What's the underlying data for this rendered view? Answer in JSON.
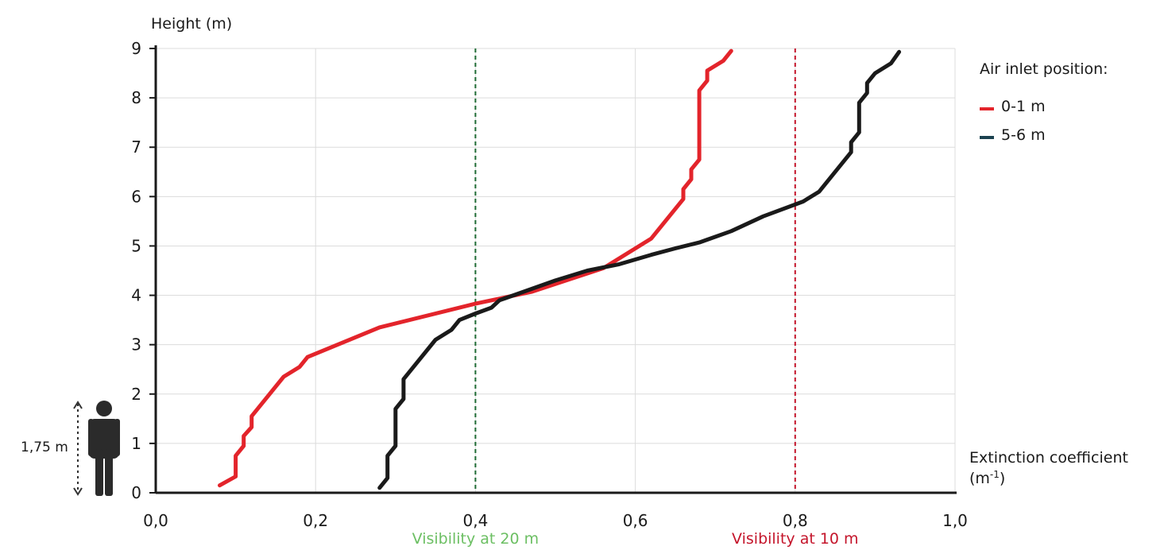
{
  "chart_data": {
    "type": "line",
    "xlabel": "Extinction coefficient",
    "xlabel_unit": "(m-1)",
    "ylabel": "Height (m)",
    "xlim": [
      0,
      1
    ],
    "ylim": [
      0,
      9
    ],
    "x_ticks": [
      "0,0",
      "0,2",
      "0,4",
      "0,6",
      "0,8",
      "1,0"
    ],
    "y_ticks": [
      "0",
      "1",
      "2",
      "3",
      "4",
      "5",
      "6",
      "7",
      "8",
      "9"
    ],
    "grid": true,
    "legend": {
      "title": "Air inlet position:",
      "placement": "right",
      "items": [
        {
          "label": "0-1 m",
          "color": "#e3242b"
        },
        {
          "label": "5-6 m",
          "color": "#1c4250"
        }
      ]
    },
    "series": [
      {
        "name": "0-1 m",
        "color": "#e3242b",
        "points": [
          [
            0.08,
            0.15
          ],
          [
            0.1,
            0.33
          ],
          [
            0.1,
            0.75
          ],
          [
            0.11,
            0.95
          ],
          [
            0.11,
            1.15
          ],
          [
            0.12,
            1.33
          ],
          [
            0.12,
            1.55
          ],
          [
            0.16,
            2.35
          ],
          [
            0.18,
            2.55
          ],
          [
            0.19,
            2.75
          ],
          [
            0.28,
            3.35
          ],
          [
            0.4,
            3.83
          ],
          [
            0.47,
            4.07
          ],
          [
            0.56,
            4.55
          ],
          [
            0.62,
            5.15
          ],
          [
            0.66,
            5.95
          ],
          [
            0.66,
            6.15
          ],
          [
            0.67,
            6.35
          ],
          [
            0.67,
            6.55
          ],
          [
            0.68,
            6.75
          ],
          [
            0.68,
            8.15
          ],
          [
            0.69,
            8.35
          ],
          [
            0.69,
            8.55
          ],
          [
            0.71,
            8.75
          ],
          [
            0.72,
            8.95
          ]
        ]
      },
      {
        "name": "5-6 m",
        "color": "#1a1a1a",
        "points": [
          [
            0.28,
            0.1
          ],
          [
            0.29,
            0.3
          ],
          [
            0.29,
            0.75
          ],
          [
            0.3,
            0.95
          ],
          [
            0.3,
            1.7
          ],
          [
            0.31,
            1.9
          ],
          [
            0.31,
            2.3
          ],
          [
            0.35,
            3.1
          ],
          [
            0.37,
            3.3
          ],
          [
            0.38,
            3.5
          ],
          [
            0.4,
            3.63
          ],
          [
            0.42,
            3.75
          ],
          [
            0.43,
            3.9
          ],
          [
            0.5,
            4.3
          ],
          [
            0.54,
            4.5
          ],
          [
            0.58,
            4.63
          ],
          [
            0.62,
            4.82
          ],
          [
            0.65,
            4.95
          ],
          [
            0.68,
            5.07
          ],
          [
            0.72,
            5.3
          ],
          [
            0.76,
            5.6
          ],
          [
            0.81,
            5.9
          ],
          [
            0.83,
            6.1
          ],
          [
            0.87,
            6.9
          ],
          [
            0.87,
            7.1
          ],
          [
            0.88,
            7.3
          ],
          [
            0.88,
            7.9
          ],
          [
            0.89,
            8.1
          ],
          [
            0.89,
            8.3
          ],
          [
            0.9,
            8.5
          ],
          [
            0.92,
            8.7
          ],
          [
            0.93,
            8.93
          ]
        ]
      }
    ],
    "reference_lines": [
      {
        "x": 0.4,
        "label": "Visibility at 20 m",
        "color": "#1e6b34",
        "label_color": "#6cbf63"
      },
      {
        "x": 0.8,
        "label": "Visibility at 10 m",
        "color": "#c4152b",
        "label_color": "#c4152b"
      }
    ],
    "annotation": {
      "label": "1,75 m",
      "person_icon": "person-icon",
      "height_m": 1.75
    }
  }
}
